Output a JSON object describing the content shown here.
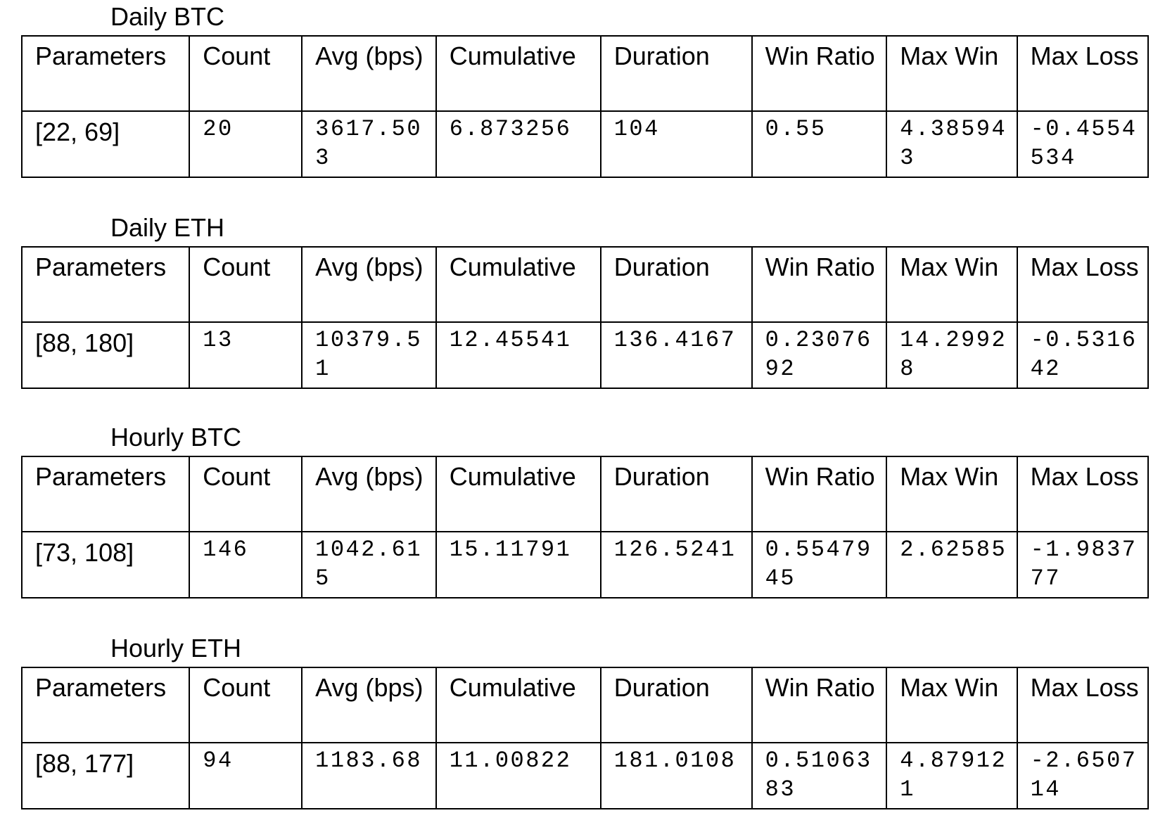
{
  "sections": [
    {
      "title": "Daily BTC",
      "headers": [
        "Parameters",
        "Count",
        "Avg (bps)",
        "Cumulative",
        "Duration",
        "Win Ratio",
        "Max Win",
        "Max Loss"
      ],
      "row": [
        "[22, 69]",
        "20",
        "3617.503",
        "6.873256",
        "104",
        "0.55",
        "4.385943",
        "-0.4554534"
      ]
    },
    {
      "title": "Daily ETH",
      "headers": [
        "Parameters",
        "Count",
        "Avg (bps)",
        "Cumulative",
        "Duration",
        "Win Ratio",
        "Max Win",
        "Max Loss"
      ],
      "row": [
        "[88, 180]",
        "13",
        "10379.51",
        "12.45541",
        "136.4167",
        "0.2307692",
        "14.29928",
        "-0.531642"
      ]
    },
    {
      "title": "Hourly BTC",
      "headers": [
        "Parameters",
        "Count",
        "Avg (bps)",
        "Cumulative",
        "Duration",
        "Win Ratio",
        "Max Win",
        "Max Loss"
      ],
      "row": [
        "[73, 108]",
        "146",
        "1042.615",
        "15.11791",
        "126.5241",
        "0.5547945",
        "2.62585",
        "-1.983777"
      ]
    },
    {
      "title": "Hourly ETH",
      "headers": [
        "Parameters",
        "Count",
        "Avg (bps)",
        "Cumulative",
        "Duration",
        "Win Ratio",
        "Max Win",
        "Max Loss"
      ],
      "row": [
        "[88, 177]",
        "94",
        "1183.68",
        "11.00822",
        "181.0108",
        "0.5106383",
        "4.879121",
        "-2.650714"
      ]
    }
  ]
}
